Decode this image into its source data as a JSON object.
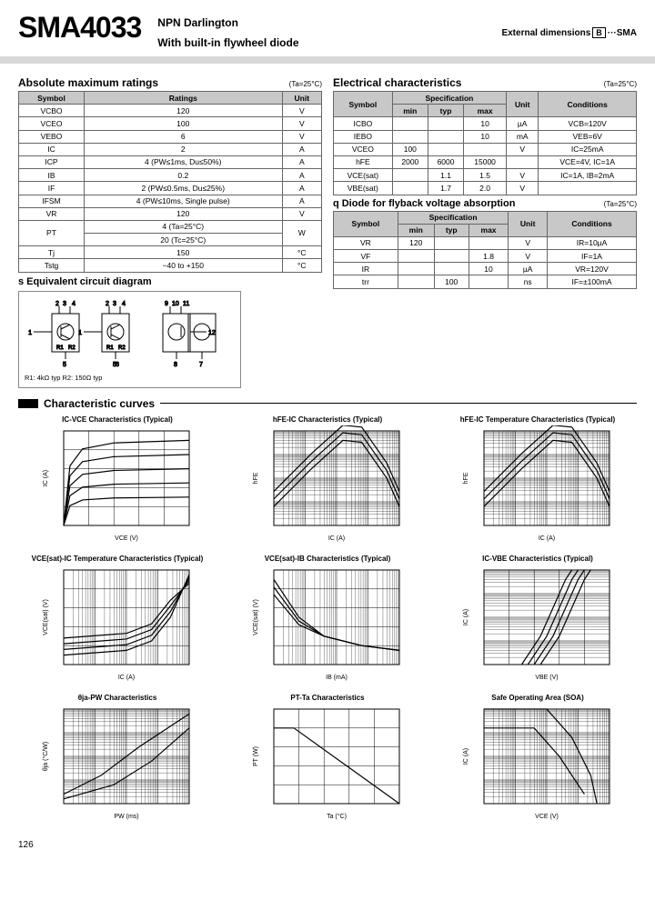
{
  "header": {
    "part_number": "SMA4033",
    "line1": "NPN Darlington",
    "line2": "With built-in flywheel diode",
    "ext_dim": "External dimensions",
    "ext_code": "SMA"
  },
  "abs_max": {
    "title": "Absolute maximum ratings",
    "cond": "(Ta=25°C)",
    "cols": [
      "Symbol",
      "Ratings",
      "Unit"
    ],
    "rows": [
      [
        "VCBO",
        "120",
        "V"
      ],
      [
        "VCEO",
        "100",
        "V"
      ],
      [
        "VEBO",
        "6",
        "V"
      ],
      [
        "IC",
        "2",
        "A"
      ],
      [
        "ICP",
        "4 (PW≤1ms, Du≤50%)",
        "A"
      ],
      [
        "IB",
        "0.2",
        "A"
      ],
      [
        "IF",
        "2 (PW≤0.5ms, Du≤25%)",
        "A"
      ],
      [
        "IFSM",
        "4 (PW≤10ms, Single pulse)",
        "A"
      ],
      [
        "VR",
        "120",
        "V"
      ],
      [
        "PT_a",
        "4 (Ta=25°C)",
        "W"
      ],
      [
        "PT_b",
        "20 (Tc=25°C)",
        ""
      ],
      [
        "Tj",
        "150",
        "°C"
      ],
      [
        "Tstg",
        "−40 to +150",
        "°C"
      ]
    ]
  },
  "elec": {
    "title": "Electrical characteristics",
    "cond": "(Ta=25°C)",
    "cols": [
      "Symbol",
      "min",
      "typ",
      "max",
      "Unit",
      "Conditions"
    ],
    "rows": [
      [
        "ICBO",
        "",
        "",
        "10",
        "µA",
        "VCB=120V"
      ],
      [
        "IEBO",
        "",
        "",
        "10",
        "mA",
        "VEB=6V"
      ],
      [
        "VCEO",
        "100",
        "",
        "",
        "V",
        "IC=25mA"
      ],
      [
        "hFE",
        "2000",
        "6000",
        "15000",
        "",
        "VCE=4V, IC=1A"
      ],
      [
        "VCE(sat)",
        "",
        "1.1",
        "1.5",
        "V",
        "IC=1A, IB=2mA"
      ],
      [
        "VBE(sat)",
        "",
        "1.7",
        "2.0",
        "V",
        ""
      ]
    ]
  },
  "diode": {
    "title": "Diode for flyback voltage absorption",
    "prefix": "q",
    "cond": "(Ta=25°C)",
    "rows": [
      [
        "VR",
        "120",
        "",
        "",
        "V",
        "IR=10µA"
      ],
      [
        "VF",
        "",
        "",
        "1.8",
        "V",
        "IF=1A"
      ],
      [
        "IR",
        "",
        "",
        "10",
        "µA",
        "VR=120V"
      ],
      [
        "trr",
        "",
        "100",
        "",
        "ns",
        "IF=±100mA"
      ]
    ]
  },
  "equiv": {
    "prefix": "s",
    "title": "Equivalent circuit diagram",
    "note": "R1: 4kΩ typ  R2: 150Ω typ",
    "pins_top1": [
      "2",
      "3",
      "4"
    ],
    "pins_top2": [
      "9",
      "10",
      "11"
    ],
    "pins_left": [
      "1",
      "12"
    ],
    "pins_bot1": [
      "5",
      "8"
    ],
    "pins_bot2": [
      "6",
      "7"
    ]
  },
  "curves_title": "Characteristic curves",
  "charts": [
    {
      "title": "IC-VCE Characteristics (Typical)",
      "xlab": "VCE (V)",
      "ylab": "IC (A)",
      "type": "family_up",
      "xlim": [
        0,
        8
      ],
      "ylim": [
        0,
        3
      ]
    },
    {
      "title": "hFE-IC Characteristics (Typical)",
      "xlab": "IC (A)",
      "ylab": "hFE",
      "type": "peak",
      "xlim": [
        0.01,
        10
      ],
      "ylim": [
        100,
        30000
      ],
      "logx": true,
      "logy": true
    },
    {
      "title": "hFE-IC Temperature Characteristics (Typical)",
      "xlab": "IC (A)",
      "ylab": "hFE",
      "type": "peak",
      "xlim": [
        0.01,
        10
      ],
      "ylim": [
        100,
        30000
      ],
      "logx": true,
      "logy": true
    },
    {
      "title": "VCE(sat)-IC Temperature Characteristics (Typical)",
      "xlab": "IC (A)",
      "ylab": "VCE(sat) (V)",
      "type": "up_family",
      "xlim": [
        0.01,
        10
      ],
      "ylim": [
        0,
        3
      ],
      "logx": true
    },
    {
      "title": "VCE(sat)-IB Characteristics (Typical)",
      "xlab": "IB (mA)",
      "ylab": "VCE(sat) (V)",
      "type": "down_family",
      "xlim": [
        0.1,
        100
      ],
      "ylim": [
        0,
        3
      ],
      "logx": true
    },
    {
      "title": "IC-VBE Characteristics (Typical)",
      "xlab": "VBE (V)",
      "ylab": "IC (A)",
      "type": "steep_up",
      "xlim": [
        0,
        3
      ],
      "ylim": [
        0.01,
        10
      ],
      "logy": true
    },
    {
      "title": "θja-PW Characteristics",
      "xlab": "PW (ms)",
      "ylab": "θja (°C/W)",
      "type": "up_single",
      "xlim": [
        0.1,
        1000
      ],
      "ylim": [
        1,
        100
      ],
      "logx": true,
      "logy": true
    },
    {
      "title": "PT-Ta Characteristics",
      "xlab": "Ta (°C)",
      "ylab": "PT (W)",
      "type": "derate",
      "xlim": [
        0,
        160
      ],
      "ylim": [
        0,
        5
      ]
    },
    {
      "title": "Safe Operating Area (SOA)",
      "xlab": "VCE (V)",
      "ylab": "IC (A)",
      "type": "soa",
      "xlim": [
        1,
        200
      ],
      "ylim": [
        0.01,
        10
      ],
      "logx": true,
      "logy": true
    }
  ],
  "colors": {
    "grid": "#000",
    "line": "#000",
    "bg": "#fff"
  },
  "page_number": "126"
}
